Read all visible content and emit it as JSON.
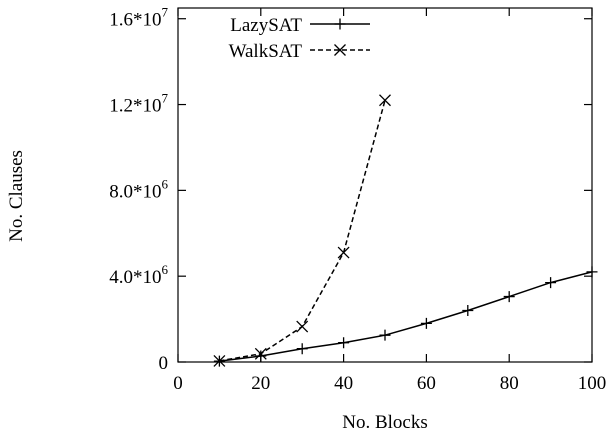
{
  "chart_data": {
    "type": "line",
    "title": "",
    "xlabel": "No. Blocks",
    "ylabel": "No. Clauses",
    "xlim": [
      0,
      100
    ],
    "ylim": [
      0,
      16500000
    ],
    "x_ticks": [
      0,
      20,
      40,
      60,
      80,
      100
    ],
    "x_tick_labels": [
      "0",
      "20",
      "40",
      "60",
      "80",
      "100"
    ],
    "y_ticks": [
      0,
      4000000,
      8000000,
      12000000,
      16000000
    ],
    "y_tick_labels": [
      {
        "base": "0",
        "exp": ""
      },
      {
        "base": "4.0*10",
        "exp": "6"
      },
      {
        "base": "8.0*10",
        "exp": "6"
      },
      {
        "base": "1.2*10",
        "exp": "7"
      },
      {
        "base": "1.6*10",
        "exp": "7"
      }
    ],
    "grid": false,
    "legend_position": "top-left",
    "series": [
      {
        "name": "LazySAT",
        "line_style": "solid",
        "marker": "plus",
        "color": "#000000",
        "x": [
          10,
          20,
          30,
          40,
          50,
          60,
          70,
          80,
          90,
          100
        ],
        "y": [
          40000,
          280000,
          620000,
          900000,
          1250000,
          1800000,
          2400000,
          3050000,
          3700000,
          4200000
        ]
      },
      {
        "name": "WalkSAT",
        "line_style": "dashed",
        "marker": "x",
        "color": "#000000",
        "x": [
          10,
          20,
          30,
          40,
          50
        ],
        "y": [
          50000,
          380000,
          1650000,
          5100000,
          12200000
        ]
      }
    ]
  }
}
